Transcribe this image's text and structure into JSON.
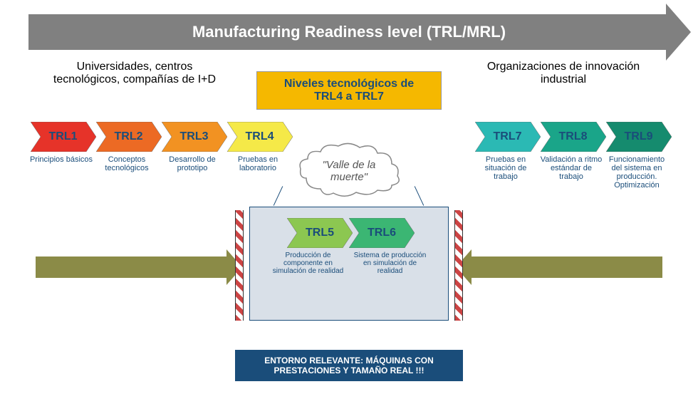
{
  "main_arrow": {
    "text": "Manufacturing Readiness level (TRL/MRL)",
    "bg": "#808080",
    "fg": "#ffffff"
  },
  "sections": {
    "left": "Universidades, centros tecnológicos, compañías de I+D",
    "right": "Organizaciones de innovación industrial"
  },
  "mid_banner": {
    "line1": "Niveles tecnológicos de",
    "line2": "TRL4 a TRL7",
    "bg": "#f5b800",
    "fg": "#1a4d7a"
  },
  "cloud_text": "\"Valle de la muerte\"",
  "trls": [
    {
      "id": "TRL1",
      "desc": "Principios básicos",
      "color": "#e63329"
    },
    {
      "id": "TRL2",
      "desc": "Conceptos tecnológicos",
      "color": "#ec6a24"
    },
    {
      "id": "TRL3",
      "desc": "Desarrollo de prototipo",
      "color": "#f29222"
    },
    {
      "id": "TRL4",
      "desc": "Pruebas en laboratorio",
      "color": "#f5e948"
    },
    {
      "id": "TRL5",
      "desc": "Producción de componente en simulación de realidad",
      "color": "#8cc751"
    },
    {
      "id": "TRL6",
      "desc": "Sistema de producción en simulación de realidad",
      "color": "#3bb673"
    },
    {
      "id": "TRL7",
      "desc": "Pruebas en situación de trabajo",
      "color": "#2bb9b4"
    },
    {
      "id": "TRL8",
      "desc": "Validación a ritmo estándar de trabajo",
      "color": "#1aa589"
    },
    {
      "id": "TRL9",
      "desc": "Funcionamiento del sistema en producción. Optimización",
      "color": "#158b6e"
    }
  ],
  "entorno": {
    "line1": "ENTORNO RELEVANTE: MÁQUINAS CON",
    "line2": "PRESTACIONES Y TAMAÑO REAL !!!",
    "bg": "#1a4d7a"
  },
  "side_arrow_color": "#8b8b47",
  "barrier_colors": {
    "stripe": "#c44",
    "gap": "#fff"
  },
  "label_color": "#1a4d7a",
  "chevron": {
    "w": 92,
    "h": 42,
    "notch": 14
  }
}
